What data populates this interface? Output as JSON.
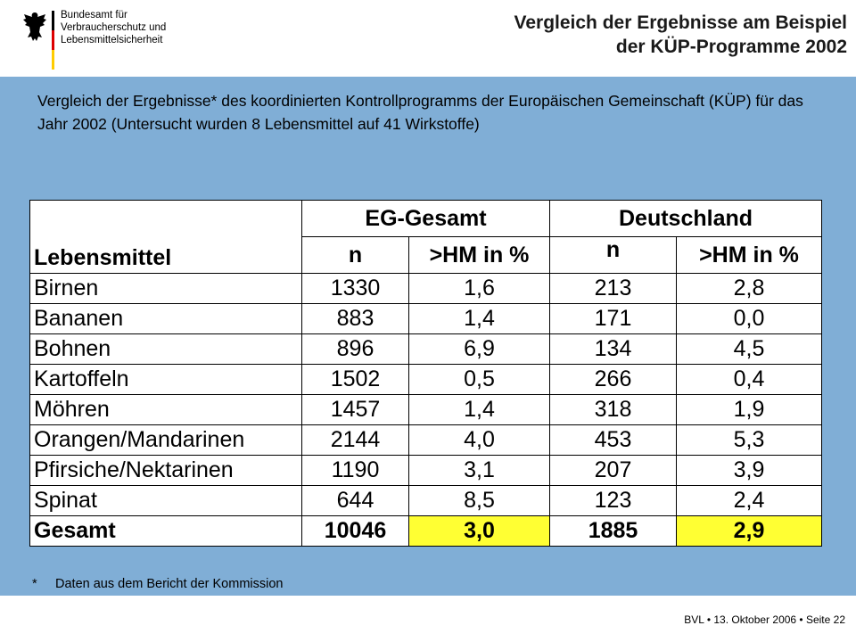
{
  "logo": {
    "lines": [
      "Bundesamt für",
      "Verbraucherschutz und",
      "Lebensmittelsicherheit"
    ],
    "colors": [
      "#000000",
      "#dd0000",
      "#ffcc00"
    ]
  },
  "title": {
    "line1": "Vergleich der Ergebnisse am Beispiel",
    "line2": "der KÜP-Programme 2002"
  },
  "intro": "Vergleich der Ergebnisse* des koordinierten Kontrollprogramms der Europäischen Gemeinschaft (KÜP) für das Jahr 2002 (Untersucht wurden 8 Lebensmittel auf 41 Wirkstoffe)",
  "table": {
    "group_headers": [
      "EG-Gesamt",
      "Deutschland"
    ],
    "row_header": "Lebensmittel",
    "sub_headers": [
      "n",
      ">HM in %",
      "n",
      ">HM in %"
    ],
    "rows": [
      {
        "name": "Birnen",
        "values": [
          "1330",
          "1,6",
          "213",
          "2,8"
        ]
      },
      {
        "name": "Bananen",
        "values": [
          "883",
          "1,4",
          "171",
          "0,0"
        ]
      },
      {
        "name": "Bohnen",
        "values": [
          "896",
          "6,9",
          "134",
          "4,5"
        ]
      },
      {
        "name": "Kartoffeln",
        "values": [
          "1502",
          "0,5",
          "266",
          "0,4"
        ]
      },
      {
        "name": "Möhren",
        "values": [
          "1457",
          "1,4",
          "318",
          "1,9"
        ]
      },
      {
        "name": "Orangen/Mandarinen",
        "values": [
          "2144",
          "4,0",
          "453",
          "5,3"
        ]
      },
      {
        "name": "Pfirsiche/Nektarinen",
        "values": [
          "1190",
          "3,1",
          "207",
          "3,9"
        ]
      },
      {
        "name": "Spinat",
        "values": [
          "644",
          "8,5",
          "123",
          "2,4"
        ]
      }
    ],
    "total": {
      "name": "Gesamt",
      "values": [
        "10046",
        "3,0",
        "1885",
        "2,9"
      ]
    },
    "highlight_color": "#ffff33"
  },
  "footnote": {
    "mark": "*",
    "text": "Daten aus dem Bericht der Kommission"
  },
  "footer": "BVL • 13. Oktober  2006 • Seite 22",
  "colors": {
    "panel_bg": "#80aed6"
  }
}
